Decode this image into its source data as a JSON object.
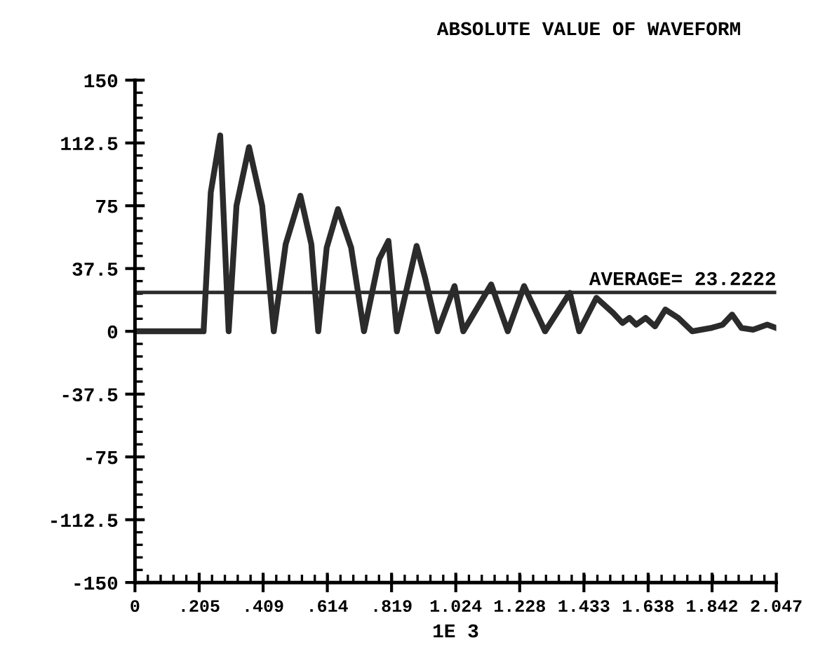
{
  "chart_data": {
    "type": "line",
    "title": "ABSOLUTE VALUE OF WAVEFORM",
    "xlabel": "1E 3",
    "x": [
      0,
      0.219,
      0.242,
      0.272,
      0.299,
      0.324,
      0.364,
      0.406,
      0.443,
      0.481,
      0.528,
      0.563,
      0.585,
      0.612,
      0.648,
      0.69,
      0.731,
      0.779,
      0.809,
      0.836,
      0.899,
      0.926,
      0.966,
      1.02,
      1.048,
      1.137,
      1.19,
      1.242,
      1.309,
      1.388,
      1.418,
      1.473,
      1.526,
      1.556,
      1.578,
      1.6,
      1.63,
      1.66,
      1.693,
      1.734,
      1.779,
      1.839,
      1.876,
      1.906,
      1.936,
      1.973,
      2.018,
      2.047
    ],
    "series": [
      {
        "color": "#2b2b2b",
        "values": [
          0,
          0,
          83,
          117,
          0,
          75,
          110,
          75,
          0,
          52,
          81,
          52,
          0,
          50,
          73,
          50,
          0,
          43,
          54,
          0,
          51,
          32,
          0,
          27,
          0,
          28,
          0,
          27,
          0,
          23,
          0,
          20,
          11,
          5,
          8,
          4,
          8,
          3,
          13,
          8,
          0,
          2,
          4,
          10,
          2,
          1,
          4,
          2
        ]
      }
    ],
    "xlim": [
      0,
      2.047
    ],
    "ylim": [
      -150,
      150
    ],
    "xticks": [
      0,
      {
        "value": 0.205,
        "label": ".205"
      },
      {
        "value": 0.409,
        "label": ".409"
      },
      {
        "value": 0.614,
        "label": ".614"
      },
      {
        "value": 0.819,
        "label": ".819"
      },
      1.024,
      1.228,
      1.433,
      1.638,
      1.842,
      2.047
    ],
    "yticks": [
      -150,
      -112.5,
      -75,
      -37.5,
      0,
      37.5,
      75,
      112.5,
      150
    ],
    "ref_lines": [
      {
        "axis": "y",
        "value": 23.2222,
        "label": "AVERAGE= 23.2222",
        "color": "#2b2b2b"
      }
    ],
    "grid": false,
    "legend": false,
    "marker": "none",
    "line_style": "solid"
  }
}
